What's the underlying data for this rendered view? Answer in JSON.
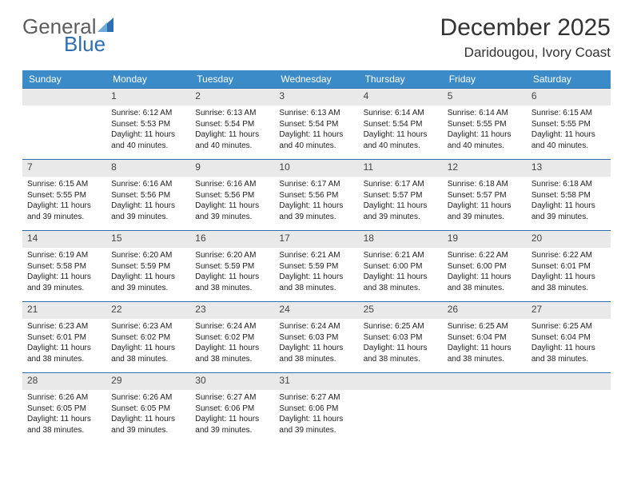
{
  "brand": {
    "general": "General",
    "blue": "Blue"
  },
  "title": "December 2025",
  "location": "Daridougou, Ivory Coast",
  "colors": {
    "header_bg": "#3b8bc8",
    "header_text": "#ffffff",
    "daynum_bg": "#e9e9e9",
    "rule": "#2f6fb0",
    "logo_gray": "#5e5e5e",
    "logo_blue": "#2f6fb0"
  },
  "weekday_labels": [
    "Sunday",
    "Monday",
    "Tuesday",
    "Wednesday",
    "Thursday",
    "Friday",
    "Saturday"
  ],
  "weeks": [
    [
      {
        "n": "",
        "lines": []
      },
      {
        "n": "1",
        "lines": [
          "Sunrise: 6:12 AM",
          "Sunset: 5:53 PM",
          "Daylight: 11 hours and 40 minutes."
        ]
      },
      {
        "n": "2",
        "lines": [
          "Sunrise: 6:13 AM",
          "Sunset: 5:54 PM",
          "Daylight: 11 hours and 40 minutes."
        ]
      },
      {
        "n": "3",
        "lines": [
          "Sunrise: 6:13 AM",
          "Sunset: 5:54 PM",
          "Daylight: 11 hours and 40 minutes."
        ]
      },
      {
        "n": "4",
        "lines": [
          "Sunrise: 6:14 AM",
          "Sunset: 5:54 PM",
          "Daylight: 11 hours and 40 minutes."
        ]
      },
      {
        "n": "5",
        "lines": [
          "Sunrise: 6:14 AM",
          "Sunset: 5:55 PM",
          "Daylight: 11 hours and 40 minutes."
        ]
      },
      {
        "n": "6",
        "lines": [
          "Sunrise: 6:15 AM",
          "Sunset: 5:55 PM",
          "Daylight: 11 hours and 40 minutes."
        ]
      }
    ],
    [
      {
        "n": "7",
        "lines": [
          "Sunrise: 6:15 AM",
          "Sunset: 5:55 PM",
          "Daylight: 11 hours and 39 minutes."
        ]
      },
      {
        "n": "8",
        "lines": [
          "Sunrise: 6:16 AM",
          "Sunset: 5:56 PM",
          "Daylight: 11 hours and 39 minutes."
        ]
      },
      {
        "n": "9",
        "lines": [
          "Sunrise: 6:16 AM",
          "Sunset: 5:56 PM",
          "Daylight: 11 hours and 39 minutes."
        ]
      },
      {
        "n": "10",
        "lines": [
          "Sunrise: 6:17 AM",
          "Sunset: 5:56 PM",
          "Daylight: 11 hours and 39 minutes."
        ]
      },
      {
        "n": "11",
        "lines": [
          "Sunrise: 6:17 AM",
          "Sunset: 5:57 PM",
          "Daylight: 11 hours and 39 minutes."
        ]
      },
      {
        "n": "12",
        "lines": [
          "Sunrise: 6:18 AM",
          "Sunset: 5:57 PM",
          "Daylight: 11 hours and 39 minutes."
        ]
      },
      {
        "n": "13",
        "lines": [
          "Sunrise: 6:18 AM",
          "Sunset: 5:58 PM",
          "Daylight: 11 hours and 39 minutes."
        ]
      }
    ],
    [
      {
        "n": "14",
        "lines": [
          "Sunrise: 6:19 AM",
          "Sunset: 5:58 PM",
          "Daylight: 11 hours and 39 minutes."
        ]
      },
      {
        "n": "15",
        "lines": [
          "Sunrise: 6:20 AM",
          "Sunset: 5:59 PM",
          "Daylight: 11 hours and 39 minutes."
        ]
      },
      {
        "n": "16",
        "lines": [
          "Sunrise: 6:20 AM",
          "Sunset: 5:59 PM",
          "Daylight: 11 hours and 38 minutes."
        ]
      },
      {
        "n": "17",
        "lines": [
          "Sunrise: 6:21 AM",
          "Sunset: 5:59 PM",
          "Daylight: 11 hours and 38 minutes."
        ]
      },
      {
        "n": "18",
        "lines": [
          "Sunrise: 6:21 AM",
          "Sunset: 6:00 PM",
          "Daylight: 11 hours and 38 minutes."
        ]
      },
      {
        "n": "19",
        "lines": [
          "Sunrise: 6:22 AM",
          "Sunset: 6:00 PM",
          "Daylight: 11 hours and 38 minutes."
        ]
      },
      {
        "n": "20",
        "lines": [
          "Sunrise: 6:22 AM",
          "Sunset: 6:01 PM",
          "Daylight: 11 hours and 38 minutes."
        ]
      }
    ],
    [
      {
        "n": "21",
        "lines": [
          "Sunrise: 6:23 AM",
          "Sunset: 6:01 PM",
          "Daylight: 11 hours and 38 minutes."
        ]
      },
      {
        "n": "22",
        "lines": [
          "Sunrise: 6:23 AM",
          "Sunset: 6:02 PM",
          "Daylight: 11 hours and 38 minutes."
        ]
      },
      {
        "n": "23",
        "lines": [
          "Sunrise: 6:24 AM",
          "Sunset: 6:02 PM",
          "Daylight: 11 hours and 38 minutes."
        ]
      },
      {
        "n": "24",
        "lines": [
          "Sunrise: 6:24 AM",
          "Sunset: 6:03 PM",
          "Daylight: 11 hours and 38 minutes."
        ]
      },
      {
        "n": "25",
        "lines": [
          "Sunrise: 6:25 AM",
          "Sunset: 6:03 PM",
          "Daylight: 11 hours and 38 minutes."
        ]
      },
      {
        "n": "26",
        "lines": [
          "Sunrise: 6:25 AM",
          "Sunset: 6:04 PM",
          "Daylight: 11 hours and 38 minutes."
        ]
      },
      {
        "n": "27",
        "lines": [
          "Sunrise: 6:25 AM",
          "Sunset: 6:04 PM",
          "Daylight: 11 hours and 38 minutes."
        ]
      }
    ],
    [
      {
        "n": "28",
        "lines": [
          "Sunrise: 6:26 AM",
          "Sunset: 6:05 PM",
          "Daylight: 11 hours and 38 minutes."
        ]
      },
      {
        "n": "29",
        "lines": [
          "Sunrise: 6:26 AM",
          "Sunset: 6:05 PM",
          "Daylight: 11 hours and 39 minutes."
        ]
      },
      {
        "n": "30",
        "lines": [
          "Sunrise: 6:27 AM",
          "Sunset: 6:06 PM",
          "Daylight: 11 hours and 39 minutes."
        ]
      },
      {
        "n": "31",
        "lines": [
          "Sunrise: 6:27 AM",
          "Sunset: 6:06 PM",
          "Daylight: 11 hours and 39 minutes."
        ]
      },
      {
        "n": "",
        "lines": []
      },
      {
        "n": "",
        "lines": []
      },
      {
        "n": "",
        "lines": []
      }
    ]
  ]
}
